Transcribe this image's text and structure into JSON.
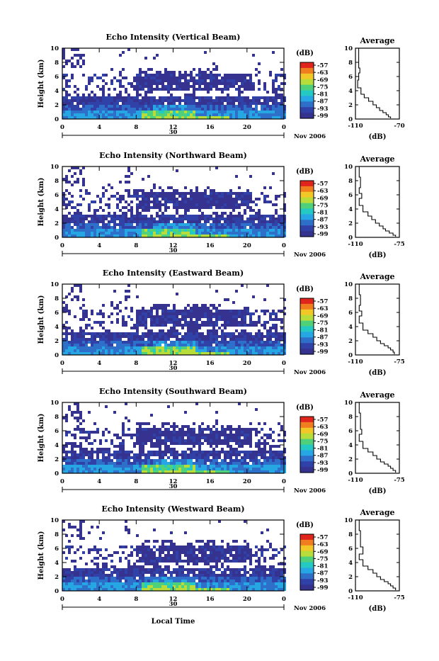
{
  "colors": {
    "scale": [
      "#35338f",
      "#3042a8",
      "#2e6fc9",
      "#27a6e4",
      "#25c9c3",
      "#4fd07a",
      "#b8dd3a",
      "#f1c827",
      "#f07d1e",
      "#e0251d"
    ],
    "axis": "#000000"
  },
  "common": {
    "ylabel": "Height (km)",
    "y_ticks": [
      "0",
      "2",
      "4",
      "6",
      "8",
      "10"
    ],
    "x_ticks": [
      "0",
      "4",
      "8",
      "12",
      "16",
      "20",
      "0"
    ],
    "date_day": "30",
    "date_month": "Nov 2006",
    "xlabel": "Local Time",
    "cbar_unit": "(dB)",
    "avg_title": "Average",
    "avg_xlabel": "(dB)"
  },
  "panels": [
    {
      "title": "Echo Intensity (Vertical Beam)",
      "cbar_ticks": [
        "-57",
        "-63",
        "-69",
        "-75",
        "-81",
        "-87",
        "-93",
        "-99"
      ],
      "avg_ticks": [
        "-110",
        "-70"
      ]
    },
    {
      "title": "Echo Intensity (Northward Beam)",
      "cbar_ticks": [
        "-57",
        "-63",
        "-69",
        "-75",
        "-81",
        "-87",
        "-93",
        "-99"
      ],
      "avg_ticks": [
        "-110",
        "-75"
      ]
    },
    {
      "title": "Echo Intensity (Eastward Beam)",
      "cbar_ticks": [
        "-57",
        "-63",
        "-69",
        "-75",
        "-81",
        "-87",
        "-93",
        "-99"
      ],
      "avg_ticks": [
        "-110",
        "-75"
      ]
    },
    {
      "title": "Echo Intensity (Southward Beam)",
      "cbar_ticks": [
        "-57",
        "-63",
        "-69",
        "-75",
        "-81",
        "-87",
        "-93",
        "-99"
      ],
      "avg_ticks": [
        "-110",
        "-75"
      ]
    },
    {
      "title": "Echo Intensity (Westward Beam)",
      "cbar_ticks": [
        "-57",
        "-63",
        "-69",
        "-75",
        "-81",
        "-87",
        "-93",
        "-99"
      ],
      "avg_ticks": [
        "-110",
        "-75"
      ]
    }
  ],
  "chart_data": [
    {
      "type": "heatmap",
      "title": "Echo Intensity (Vertical Beam)",
      "xlabel": "",
      "ylabel": "Height (km)",
      "xlim": [
        0,
        24
      ],
      "ylim": [
        0,
        10
      ],
      "zlim": [
        -99,
        -57
      ],
      "z_unit": "(dB)"
    },
    {
      "type": "line",
      "title": "Average",
      "xlabel": "(dB)",
      "ylabel": "",
      "xlim": [
        -110,
        -70
      ],
      "ylim": [
        0,
        10
      ],
      "x": [
        -108,
        -107,
        -107,
        -106,
        -107,
        -108,
        -105,
        -102,
        -98,
        -94,
        -91,
        -88,
        -85,
        -82,
        -80,
        -78
      ],
      "y": [
        10,
        8.5,
        7.2,
        6.5,
        5.5,
        4.4,
        3.5,
        3.0,
        2.5,
        2.0,
        1.6,
        1.2,
        0.9,
        0.6,
        0.3,
        0.1
      ]
    },
    {
      "type": "heatmap",
      "title": "Echo Intensity (Northward Beam)",
      "xlabel": "",
      "ylabel": "Height (km)",
      "xlim": [
        0,
        24
      ],
      "ylim": [
        0,
        10
      ],
      "zlim": [
        -99,
        -57
      ],
      "z_unit": "(dB)"
    },
    {
      "type": "line",
      "title": "Average",
      "xlabel": "(dB)",
      "ylabel": "",
      "xlim": [
        -110,
        -75
      ],
      "ylim": [
        0,
        10
      ],
      "x": [
        -108,
        -107,
        -106,
        -107,
        -105,
        -107,
        -104,
        -100,
        -97,
        -94,
        -91,
        -88,
        -86,
        -83,
        -80,
        -78
      ],
      "y": [
        10,
        8.5,
        7.0,
        6.2,
        5.5,
        4.5,
        3.6,
        3.0,
        2.5,
        2.0,
        1.6,
        1.2,
        0.9,
        0.6,
        0.3,
        0.1
      ]
    },
    {
      "type": "heatmap",
      "title": "Echo Intensity (Eastward Beam)",
      "xlabel": "",
      "ylabel": "Height (km)",
      "xlim": [
        0,
        24
      ],
      "ylim": [
        0,
        10
      ],
      "zlim": [
        -99,
        -57
      ],
      "z_unit": "(dB)"
    },
    {
      "type": "line",
      "title": "Average",
      "xlabel": "(dB)",
      "ylabel": "",
      "xlim": [
        -110,
        -75
      ],
      "ylim": [
        0,
        10
      ],
      "x": [
        -108,
        -107,
        -106,
        -107,
        -105,
        -107,
        -104,
        -100,
        -96,
        -93,
        -90,
        -87,
        -84,
        -82,
        -80,
        -79
      ],
      "y": [
        10,
        8.5,
        7.0,
        6.2,
        5.5,
        4.5,
        3.5,
        3.0,
        2.5,
        2.0,
        1.6,
        1.3,
        1.0,
        0.7,
        0.4,
        0.1
      ]
    },
    {
      "type": "heatmap",
      "title": "Echo Intensity (Southward Beam)",
      "xlabel": "",
      "ylabel": "Height (km)",
      "xlim": [
        0,
        24
      ],
      "ylim": [
        0,
        10
      ],
      "zlim": [
        -99,
        -57
      ],
      "z_unit": "(dB)"
    },
    {
      "type": "line",
      "title": "Average",
      "xlabel": "(dB)",
      "ylabel": "",
      "xlim": [
        -110,
        -75
      ],
      "ylim": [
        0,
        10
      ],
      "x": [
        -108,
        -107,
        -106,
        -106,
        -105,
        -107,
        -104,
        -100,
        -96,
        -93,
        -90,
        -87,
        -84,
        -82,
        -80,
        -78
      ],
      "y": [
        10,
        8.5,
        7.0,
        6.2,
        5.5,
        4.5,
        3.5,
        3.0,
        2.5,
        2.0,
        1.6,
        1.3,
        1.0,
        0.7,
        0.4,
        0.1
      ]
    },
    {
      "type": "heatmap",
      "title": "Echo Intensity (Westward Beam)",
      "xlabel": "Local Time",
      "ylabel": "Height (km)",
      "xlim": [
        0,
        24
      ],
      "ylim": [
        0,
        10
      ],
      "zlim": [
        -99,
        -57
      ],
      "z_unit": "(dB)"
    },
    {
      "type": "line",
      "title": "Average",
      "xlabel": "(dB)",
      "ylabel": "",
      "xlim": [
        -110,
        -75
      ],
      "ylim": [
        0,
        10
      ],
      "x": [
        -108,
        -107,
        -106,
        -106,
        -104,
        -107,
        -104,
        -100,
        -96,
        -93,
        -90,
        -87,
        -84,
        -82,
        -80,
        -78
      ],
      "y": [
        10,
        8.5,
        7.0,
        6.2,
        5.2,
        4.4,
        3.5,
        3.0,
        2.5,
        2.0,
        1.6,
        1.3,
        1.0,
        0.7,
        0.4,
        0.1
      ]
    }
  ]
}
